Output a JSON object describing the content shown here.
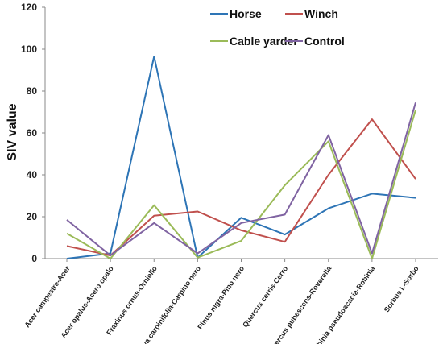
{
  "chart_data": {
    "type": "line",
    "ylabel": "SIV value",
    "xlabel": "",
    "ylim": [
      0,
      120
    ],
    "yticks": [
      0,
      20,
      40,
      60,
      80,
      100,
      120
    ],
    "grid": false,
    "legend_position": "top-right",
    "categories": [
      "Acer campestre-Acer",
      "Acer opalus-Acero opalo",
      "Fraxinus ornus-Orniello",
      "Ostrya carpinifolia-Carpino nero",
      "Pinus nigra-Pino nero",
      "Quercus cerris-Cerro",
      "Quercus pubescens-Roverella",
      "Robinia pseudoacacia-Robinia",
      "Sorbus l.-Sorbo"
    ],
    "series": [
      {
        "name": "Horse",
        "color": "#2E75B6",
        "values": [
          0,
          2.5,
          96.5,
          0.5,
          19.5,
          11.5,
          24,
          31,
          29
        ]
      },
      {
        "name": "Winch",
        "color": "#C0504D",
        "values": [
          6,
          1.5,
          20.5,
          22.5,
          13.5,
          8,
          40,
          66.5,
          38
        ]
      },
      {
        "name": "Cable yarder",
        "color": "#9BBB59",
        "values": [
          12,
          0,
          25.5,
          0.5,
          8.5,
          35,
          56,
          0,
          71
        ]
      },
      {
        "name": "Control",
        "color": "#8064A2",
        "values": [
          18.5,
          1.5,
          17,
          2.5,
          17,
          21,
          59,
          2.5,
          74.5
        ]
      }
    ]
  }
}
